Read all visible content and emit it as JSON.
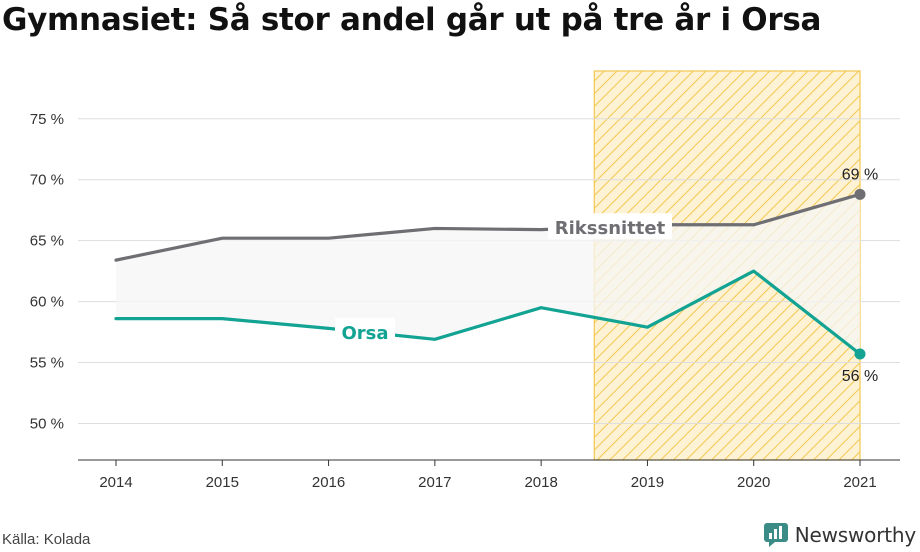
{
  "title": "Gymnasiet: Så stor andel går ut på tre år i Orsa",
  "source": "Källa: Kolada",
  "brand": "Newsworthy",
  "colors": {
    "riks": "#6f6e73",
    "orsa": "#12a393",
    "highlight_stroke": "#f3c64f",
    "grid": "#dddddd",
    "fill": "#f5f5f5"
  },
  "chart_data": {
    "type": "line",
    "x": [
      "2014",
      "2015",
      "2016",
      "2017",
      "2018",
      "2019",
      "2020",
      "2021"
    ],
    "ylim": [
      47,
      79
    ],
    "yticks": [
      50,
      55,
      60,
      65,
      70,
      75
    ],
    "ytick_labels": [
      "50 %",
      "55 %",
      "60 %",
      "65 %",
      "70 %",
      "75 %"
    ],
    "highlight": {
      "from": "2018.5",
      "to": "2021"
    },
    "series": [
      {
        "name": "Rikssnittet",
        "values": [
          63.4,
          65.2,
          65.2,
          66.0,
          65.9,
          66.3,
          66.3,
          68.8
        ],
        "end_label": "69 %"
      },
      {
        "name": "Orsa",
        "values": [
          58.6,
          58.6,
          57.8,
          56.9,
          59.5,
          57.9,
          62.5,
          55.7
        ],
        "end_label": "56 %"
      }
    ]
  }
}
